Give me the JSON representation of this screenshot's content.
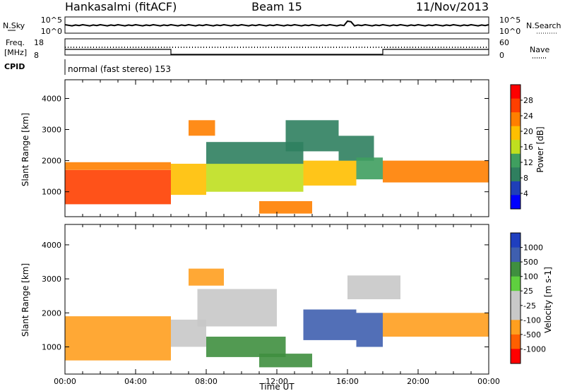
{
  "header": {
    "station": "Hankasalmi (fitACF)",
    "beam": "Beam 15",
    "date": "11/Nov/2013"
  },
  "noise_panel": {
    "left_label": "N.Sky",
    "right_label": "N.Search",
    "left_ticks": [
      "10^5",
      "10^0"
    ],
    "right_ticks": [
      "10^5",
      "10^0"
    ]
  },
  "freq_panel": {
    "left_label_line1": "Freq.",
    "left_label_line2": "[MHz]",
    "right_label": "Nave",
    "left_ticks": [
      "18",
      "8"
    ],
    "right_ticks": [
      "60",
      "0"
    ],
    "freq_steps": [
      {
        "from_hour": 0,
        "to_hour": 6,
        "level": "high"
      },
      {
        "from_hour": 6,
        "to_hour": 18,
        "level": "low"
      },
      {
        "from_hour": 18,
        "to_hour": 24,
        "level": "high"
      }
    ]
  },
  "cpid": {
    "label": "CPID",
    "text": "normal (fast stereo) 153"
  },
  "colors": {
    "power_scale": [
      "#0000ff",
      "#1f3fb8",
      "#2f7f5f",
      "#3f9f5f",
      "#bfdf1f",
      "#ffbf00",
      "#ff7f00",
      "#ff3f00",
      "#ff0000"
    ],
    "velocity_scale": [
      "#ff0000",
      "#ff5f00",
      "#ff9f1f",
      "#c8c8c8",
      "#c8c8c8",
      "#5fcf3f",
      "#3f8f3f",
      "#3f5faf",
      "#1f3fbf"
    ]
  },
  "chart_data": [
    {
      "type": "heatmap",
      "panel": "power",
      "xlabel": "",
      "ylabel": "Slant Range [km]",
      "colorbar_label": "Power [dB]",
      "colorbar_ticks": [
        "28",
        "24",
        "20",
        "16",
        "12",
        "8",
        "4"
      ],
      "xlim_hours": [
        0,
        24
      ],
      "ylim": [
        200,
        4600
      ],
      "yticks": [
        "4000",
        "3000",
        "2000",
        "1000"
      ],
      "regions": [
        {
          "x": [
            0.0,
            6.0
          ],
          "y": [
            600,
            1700
          ],
          "level": 28
        },
        {
          "x": [
            0.0,
            6.0
          ],
          "y": [
            1700,
            1950
          ],
          "level": 22
        },
        {
          "x": [
            6.0,
            8.0
          ],
          "y": [
            900,
            1900
          ],
          "level": 18
        },
        {
          "x": [
            8.0,
            13.5
          ],
          "y": [
            1000,
            1900
          ],
          "level": 16
        },
        {
          "x": [
            8.0,
            13.5
          ],
          "y": [
            1900,
            2600
          ],
          "level": 8
        },
        {
          "x": [
            11.0,
            14.0
          ],
          "y": [
            300,
            700
          ],
          "level": 22
        },
        {
          "x": [
            13.5,
            16.5
          ],
          "y": [
            1200,
            2000
          ],
          "level": 20
        },
        {
          "x": [
            15.5,
            17.5
          ],
          "y": [
            2000,
            2800
          ],
          "level": 8
        },
        {
          "x": [
            16.5,
            18.0
          ],
          "y": [
            1400,
            2100
          ],
          "level": 14
        },
        {
          "x": [
            18.0,
            24.0
          ],
          "y": [
            1300,
            2000
          ],
          "level": 22
        },
        {
          "x": [
            7.0,
            8.5
          ],
          "y": [
            2800,
            3300
          ],
          "level": 24
        },
        {
          "x": [
            12.5,
            15.5
          ],
          "y": [
            2300,
            3300
          ],
          "level": 10
        }
      ]
    },
    {
      "type": "heatmap",
      "panel": "velocity",
      "xlabel": "Time UT",
      "ylabel": "Slant Range [km]",
      "colorbar_label": "Velocity [m s-1]",
      "colorbar_ticks": [
        "1000",
        "500",
        "100",
        "25",
        "-25",
        "-100",
        "-500",
        "-1000"
      ],
      "xlim_hours": [
        0,
        24
      ],
      "ylim": [
        200,
        4600
      ],
      "yticks": [
        "4000",
        "3000",
        "2000",
        "1000"
      ],
      "xticks": [
        "00:00",
        "04:00",
        "08:00",
        "12:00",
        "16:00",
        "20:00",
        "00:00"
      ],
      "regions": [
        {
          "x": [
            0.0,
            6.0
          ],
          "y": [
            600,
            1900
          ],
          "level": -300
        },
        {
          "x": [
            6.0,
            8.0
          ],
          "y": [
            1000,
            1800
          ],
          "level": 0
        },
        {
          "x": [
            7.5,
            12.0
          ],
          "y": [
            1600,
            2700
          ],
          "level": 0
        },
        {
          "x": [
            8.0,
            12.5
          ],
          "y": [
            700,
            1300
          ],
          "level": 60
        },
        {
          "x": [
            11.0,
            14.0
          ],
          "y": [
            400,
            800
          ],
          "level": 80
        },
        {
          "x": [
            13.5,
            16.5
          ],
          "y": [
            1200,
            2100
          ],
          "level": 300
        },
        {
          "x": [
            16.5,
            18.0
          ],
          "y": [
            1000,
            2000
          ],
          "level": 150
        },
        {
          "x": [
            18.0,
            24.0
          ],
          "y": [
            1300,
            2000
          ],
          "level": -300
        },
        {
          "x": [
            16.0,
            19.0
          ],
          "y": [
            2400,
            3100
          ],
          "level": 0
        },
        {
          "x": [
            7.0,
            9.0
          ],
          "y": [
            2800,
            3300
          ],
          "level": -300
        }
      ]
    }
  ]
}
